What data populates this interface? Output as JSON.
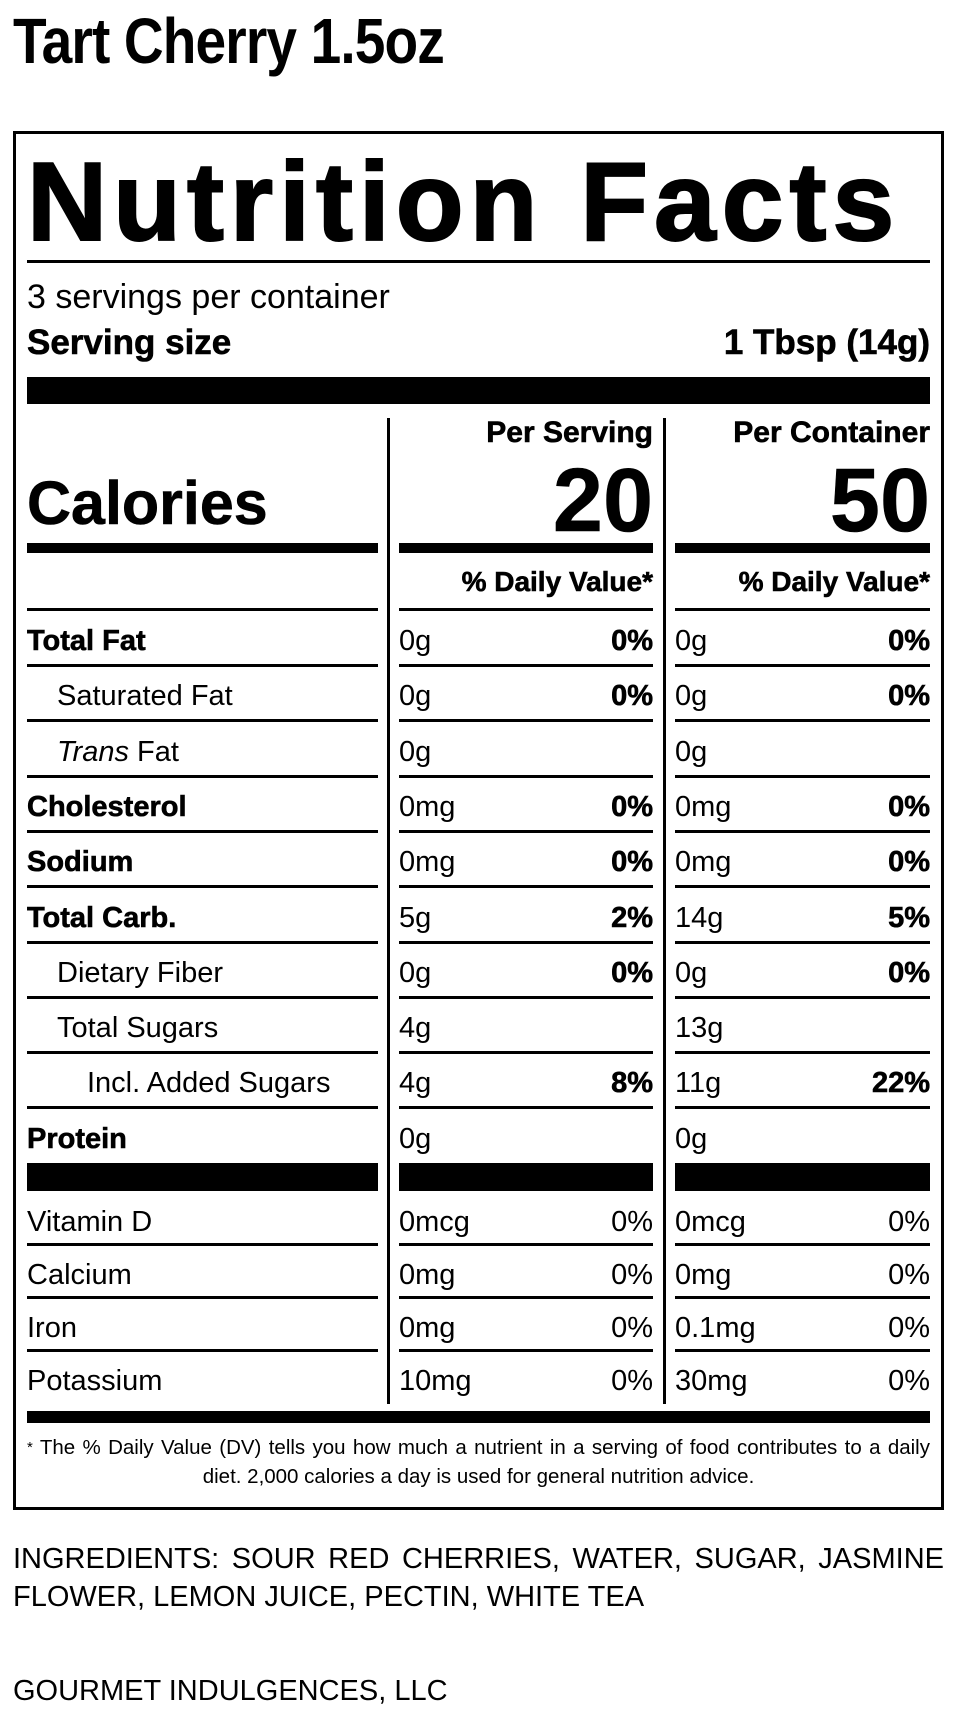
{
  "product_title": "Tart Cherry 1.5oz",
  "label": {
    "heading": "Nutrition Facts",
    "servings_per_container": "3 servings per container",
    "serving_size_label": "Serving size",
    "serving_size_value": "1 Tbsp (14g)",
    "calories_label": "Calories",
    "columns": [
      {
        "header": "Per Serving",
        "calories": "20",
        "dv_header": "% Daily Value*"
      },
      {
        "header": "Per Container",
        "calories": "50",
        "dv_header": "% Daily Value*"
      }
    ],
    "nutrients": [
      {
        "name": "Total Fat",
        "bold": true,
        "indent": 0,
        "serving": [
          "0g",
          "0%"
        ],
        "container": [
          "0g",
          "0%"
        ]
      },
      {
        "name": "Saturated Fat",
        "bold": false,
        "indent": 1,
        "serving": [
          "0g",
          "0%"
        ],
        "container": [
          "0g",
          "0%"
        ]
      },
      {
        "name_italic": "Trans",
        "name": " Fat",
        "bold": false,
        "indent": 1,
        "serving": [
          "0g",
          ""
        ],
        "container": [
          "0g",
          ""
        ]
      },
      {
        "name": "Cholesterol",
        "bold": true,
        "indent": 0,
        "serving": [
          "0mg",
          "0%"
        ],
        "container": [
          "0mg",
          "0%"
        ]
      },
      {
        "name": "Sodium",
        "bold": true,
        "indent": 0,
        "serving": [
          "0mg",
          "0%"
        ],
        "container": [
          "0mg",
          "0%"
        ]
      },
      {
        "name": "Total Carb.",
        "bold": true,
        "indent": 0,
        "serving": [
          "5g",
          "2%"
        ],
        "container": [
          "14g",
          "5%"
        ]
      },
      {
        "name": "Dietary Fiber",
        "bold": false,
        "indent": 1,
        "serving": [
          "0g",
          "0%"
        ],
        "container": [
          "0g",
          "0%"
        ]
      },
      {
        "name": "Total Sugars",
        "bold": false,
        "indent": 1,
        "serving": [
          "4g",
          ""
        ],
        "container": [
          "13g",
          ""
        ]
      },
      {
        "name": "Incl. Added Sugars",
        "bold": false,
        "indent": 2,
        "serving": [
          "4g",
          "8%"
        ],
        "container": [
          "11g",
          "22%"
        ]
      },
      {
        "name": "Protein",
        "bold": true,
        "indent": 0,
        "serving": [
          "0g",
          ""
        ],
        "container": [
          "0g",
          ""
        ]
      }
    ],
    "vitamins": [
      {
        "name": "Vitamin D",
        "serving": [
          "0mcg",
          "0%"
        ],
        "container": [
          "0mcg",
          "0%"
        ]
      },
      {
        "name": "Calcium",
        "serving": [
          "0mg",
          "0%"
        ],
        "container": [
          "0mg",
          "0%"
        ]
      },
      {
        "name": "Iron",
        "serving": [
          "0mg",
          "0%"
        ],
        "container": [
          "0.1mg",
          "0%"
        ]
      },
      {
        "name": "Potassium",
        "serving": [
          "10mg",
          "0%"
        ],
        "container": [
          "30mg",
          "0%"
        ]
      }
    ],
    "footnote_star": "*",
    "footnote": "The % Daily Value (DV) tells you how much a nutrient in a serving of food contributes to a daily diet. 2,000 calories a day is used for general nutrition advice."
  },
  "ingredients": "INGREDIENTS: SOUR RED CHERRIES, WATER, SUGAR, JASMINE FLOWER, LEMON JUICE, PECTIN, WHITE TEA",
  "manufacturer": "GOURMET INDULGENCES, LLC"
}
